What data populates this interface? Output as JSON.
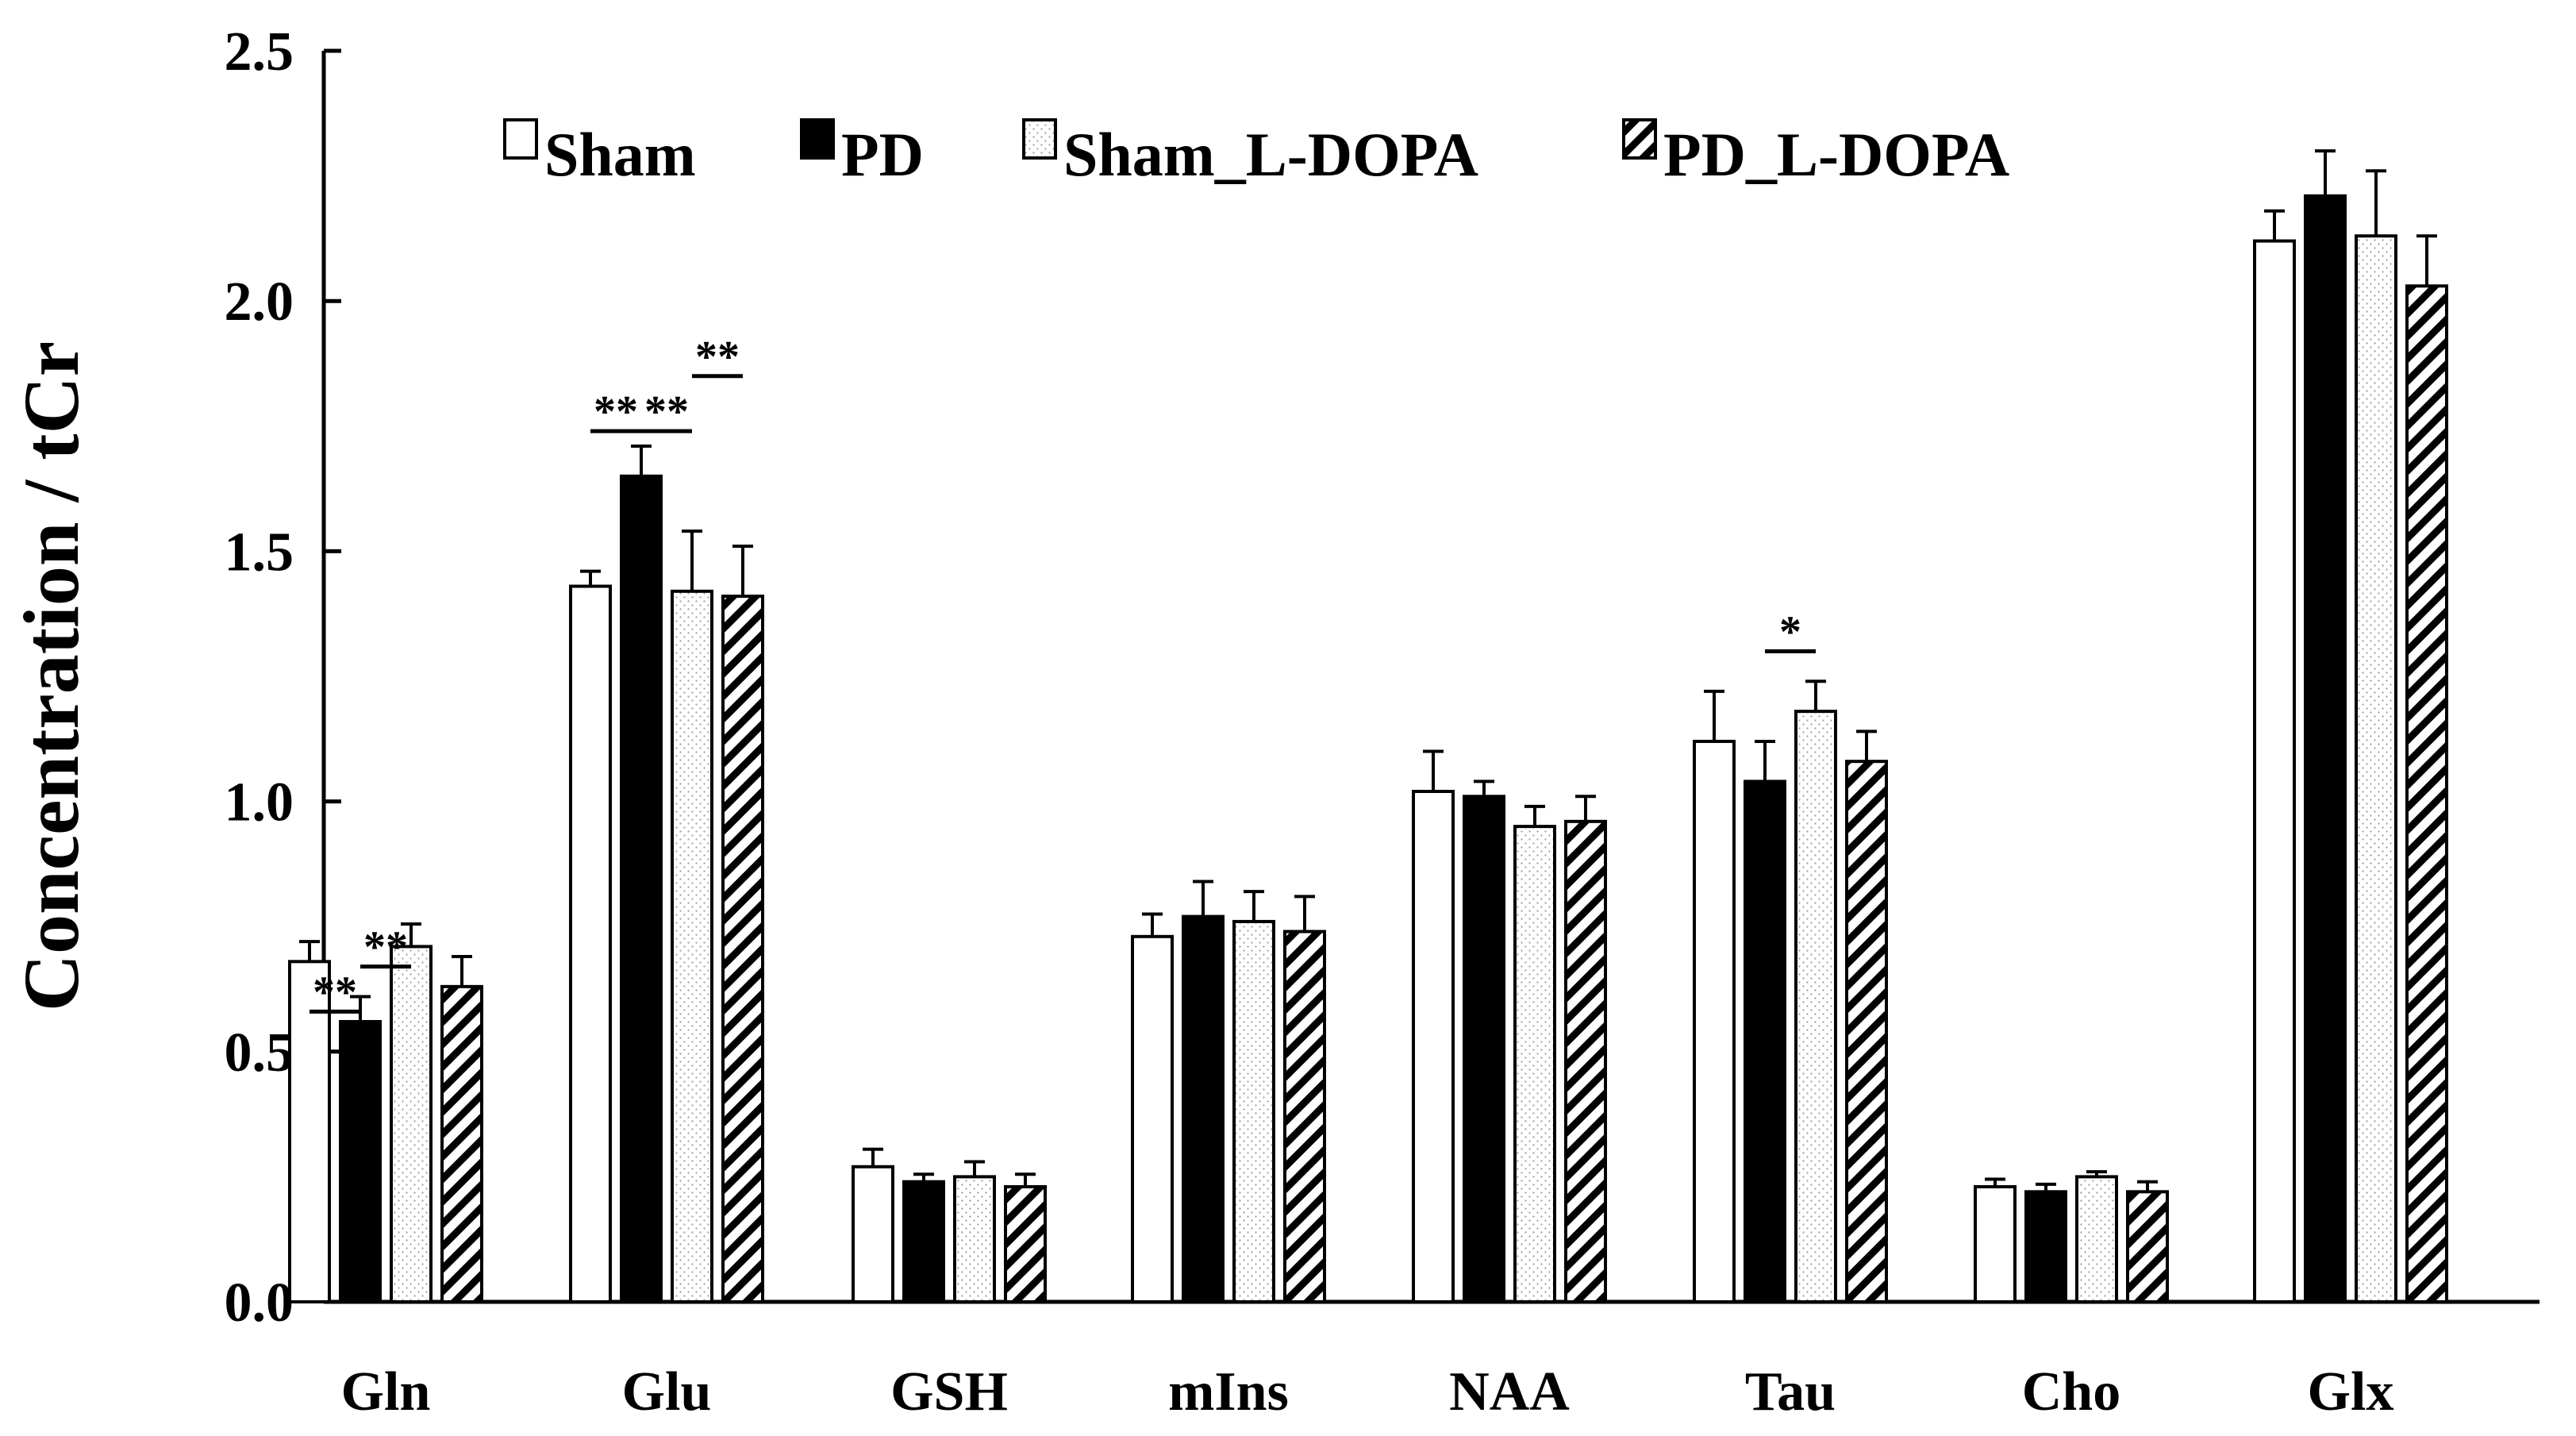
{
  "chart_data": {
    "type": "bar",
    "title": "",
    "xlabel": "",
    "ylabel": "Concentration / tCr",
    "ylim": [
      0,
      2.5
    ],
    "yticks": [
      0.0,
      0.5,
      1.0,
      1.5,
      2.0,
      2.5
    ],
    "ytick_labels": [
      "0.0",
      "0.5",
      "1.0",
      "1.5",
      "2.0",
      "2.5"
    ],
    "grid": false,
    "legend_position": "top-left",
    "categories": [
      "Gln",
      "Glu",
      "GSH",
      "mIns",
      "NAA",
      "Tau",
      "Cho",
      "Glx"
    ],
    "series": [
      {
        "name": "Sham",
        "pattern": "white",
        "values": [
          0.68,
          1.43,
          0.27,
          0.73,
          1.02,
          1.12,
          0.23,
          2.12
        ],
        "errors": [
          0.04,
          0.03,
          0.035,
          0.045,
          0.08,
          0.1,
          0.015,
          0.06
        ]
      },
      {
        "name": "PD",
        "pattern": "black",
        "values": [
          0.56,
          1.65,
          0.24,
          0.77,
          1.01,
          1.04,
          0.22,
          2.21
        ],
        "errors": [
          0.05,
          0.06,
          0.015,
          0.07,
          0.03,
          0.08,
          0.015,
          0.09
        ]
      },
      {
        "name": "Sham_L-DOPA",
        "pattern": "dotted",
        "values": [
          0.71,
          1.42,
          0.25,
          0.76,
          0.95,
          1.18,
          0.25,
          2.13
        ],
        "errors": [
          0.045,
          0.12,
          0.03,
          0.06,
          0.04,
          0.06,
          0.01,
          0.13
        ]
      },
      {
        "name": "PD_L-DOPA",
        "pattern": "hatched",
        "values": [
          0.63,
          1.41,
          0.23,
          0.74,
          0.96,
          1.08,
          0.22,
          2.03
        ],
        "errors": [
          0.06,
          0.1,
          0.025,
          0.07,
          0.05,
          0.06,
          0.02,
          0.1
        ]
      }
    ],
    "significance": [
      {
        "category": "Gln",
        "from_series": 0,
        "to_series": 1,
        "level": 0.58,
        "label": "**"
      },
      {
        "category": "Gln",
        "from_series": 1,
        "to_series": 2,
        "level": 0.67,
        "label": "**"
      },
      {
        "category": "Glu",
        "from_series": 0,
        "to_series": 1,
        "level": 1.74,
        "label": "**"
      },
      {
        "category": "Glu",
        "from_series": 1,
        "to_series": 2,
        "level": 1.74,
        "label": "**"
      },
      {
        "category": "Glu",
        "from_series": 2,
        "to_series": 3,
        "level": 1.85,
        "label": "**"
      },
      {
        "category": "Tau",
        "from_series": 1,
        "to_series": 2,
        "level": 1.3,
        "label": "*"
      }
    ]
  }
}
